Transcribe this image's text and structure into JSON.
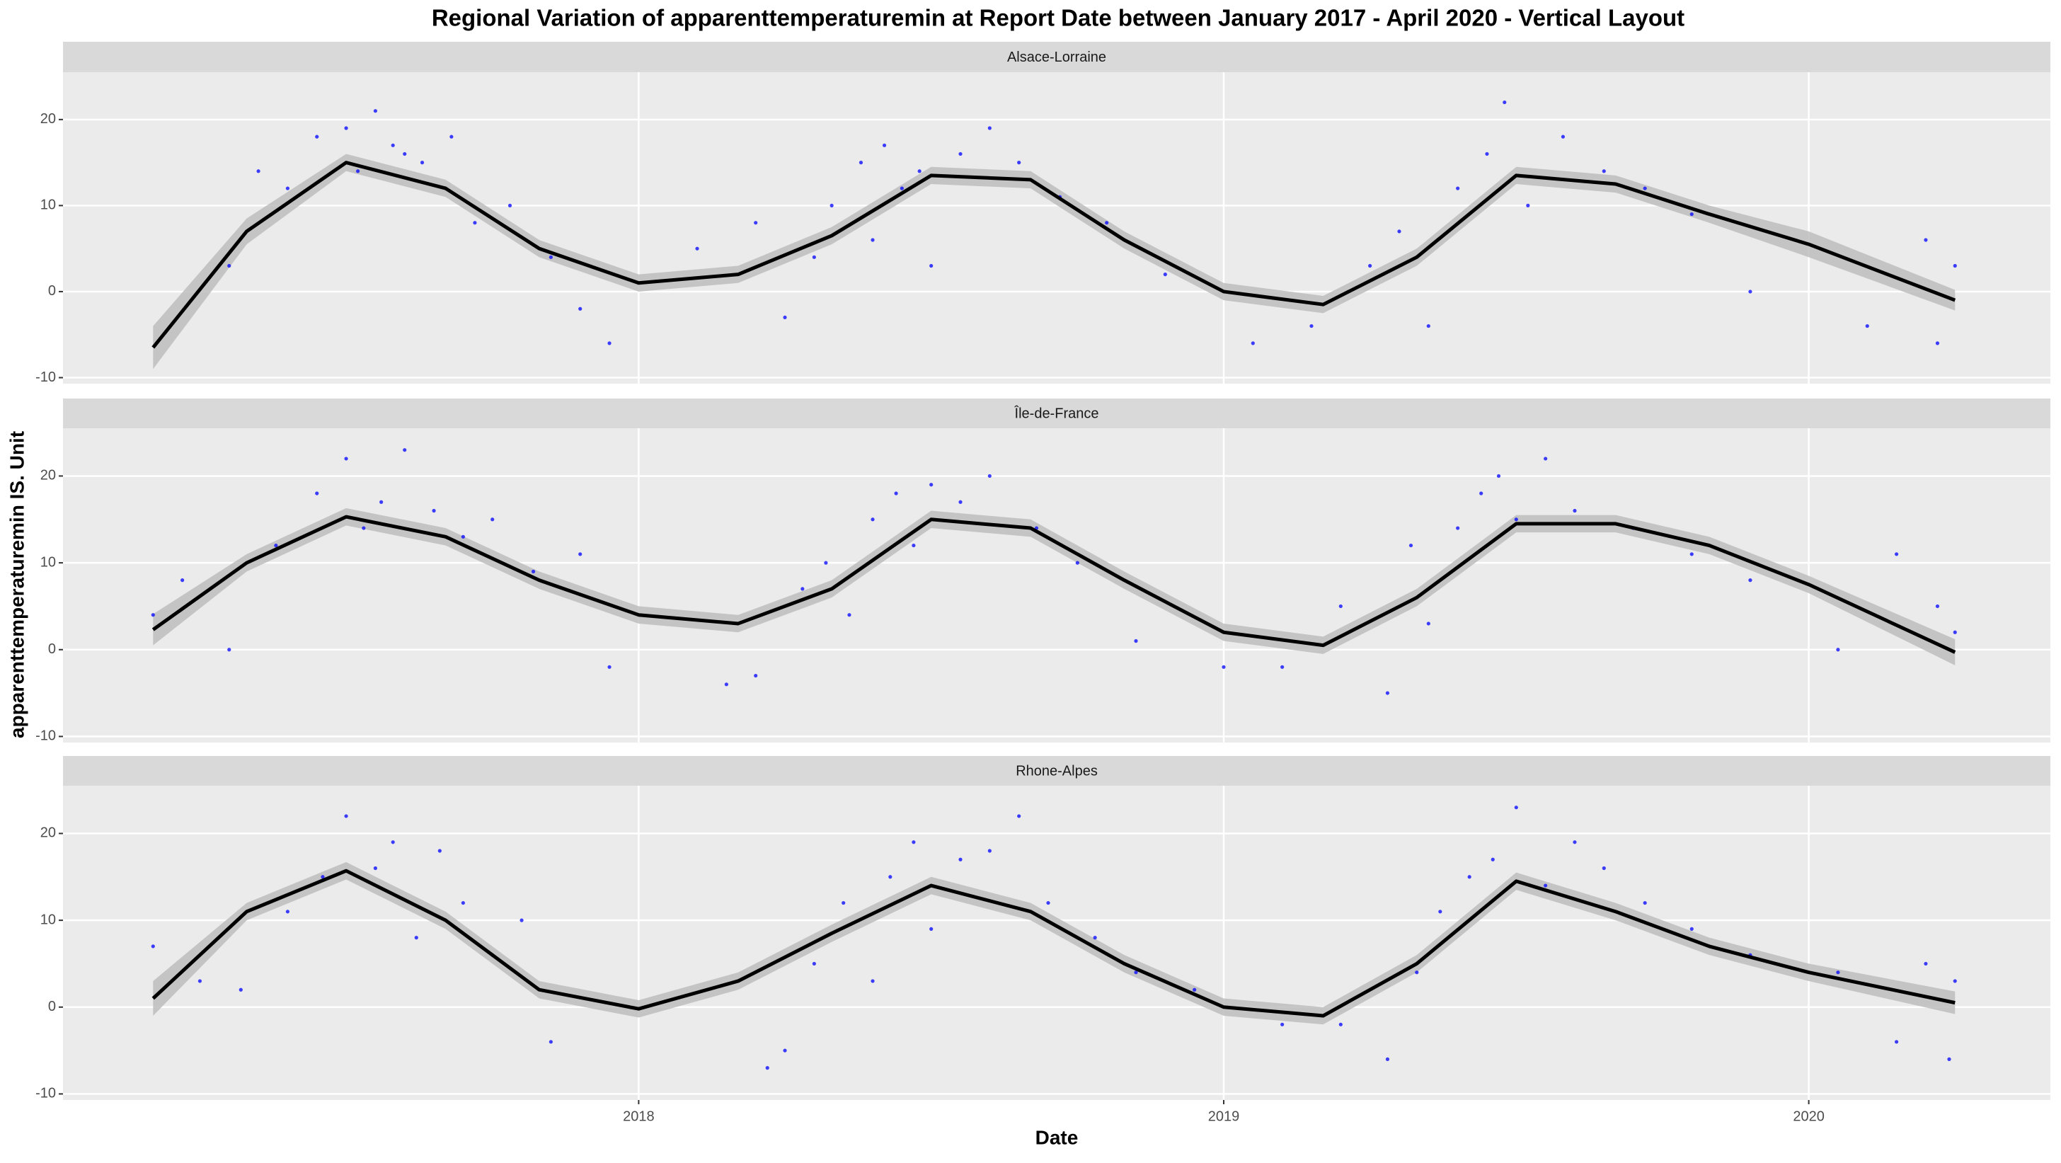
{
  "chart_data": {
    "type": "scatter",
    "title": "Regional Variation of  apparenttemperaturemin  at Report Date between January 2017 - April 2020 - Vertical Layout",
    "x_label": "Date",
    "y_label": "apparenttemperaturemin  IS. Unit",
    "xlim": [
      2017.016,
      2020.413
    ],
    "xticks": [
      2018,
      2019,
      2020
    ],
    "ylim": [
      -10.7,
      25.5
    ],
    "yticks": [
      -10,
      0,
      10,
      20
    ],
    "grid": true,
    "point_color": "#0000ff",
    "line_color": "#000000",
    "band_color": "#bdbdbd",
    "panels": [
      {
        "name": "Alsace-Lorraine",
        "points": {
          "x": [
            2017.3,
            2017.35,
            2017.4,
            2017.45,
            2017.5,
            2017.52,
            2017.55,
            2017.58,
            2017.6,
            2017.63,
            2017.68,
            2017.72,
            2017.78,
            2017.85,
            2017.9,
            2017.95,
            2018.1,
            2018.2,
            2018.25,
            2018.3,
            2018.33,
            2018.38,
            2018.4,
            2018.42,
            2018.45,
            2018.48,
            2018.5,
            2018.55,
            2018.6,
            2018.65,
            2018.72,
            2018.8,
            2018.9,
            2019.05,
            2019.15,
            2019.25,
            2019.3,
            2019.35,
            2019.4,
            2019.45,
            2019.48,
            2019.52,
            2019.58,
            2019.65,
            2019.72,
            2019.8,
            2019.9,
            2020.1,
            2020.2,
            2020.22,
            2020.25
          ],
          "values": [
            3,
            14,
            12,
            18,
            19,
            14,
            21,
            17,
            16,
            15,
            18,
            8,
            10,
            4,
            -2,
            -6,
            5,
            8,
            -3,
            4,
            10,
            15,
            6,
            17,
            12,
            14,
            3,
            16,
            19,
            15,
            11,
            8,
            2,
            -6,
            -4,
            3,
            7,
            -4,
            12,
            16,
            22,
            10,
            18,
            14,
            12,
            9,
            0,
            -4,
            6,
            -6,
            3
          ]
        },
        "smooth": {
          "x": [
            2017.17,
            2017.33,
            2017.5,
            2017.67,
            2017.83,
            2018.0,
            2018.17,
            2018.33,
            2018.5,
            2018.67,
            2018.83,
            2019.0,
            2019.17,
            2019.33,
            2019.5,
            2019.67,
            2019.83,
            2020.0,
            2020.25
          ],
          "values": [
            -6.5,
            7,
            15,
            12,
            5,
            1,
            2,
            6.5,
            13.5,
            13,
            6,
            0,
            -1.5,
            4,
            13.5,
            12.5,
            9,
            5.5,
            -1
          ],
          "lower": [
            -9,
            5.5,
            14,
            11,
            4,
            0,
            1,
            5.5,
            12.5,
            12,
            5,
            -1,
            -2.5,
            3,
            12.5,
            11.5,
            8,
            4,
            -2.2
          ],
          "upper": [
            -4,
            8.5,
            16,
            13,
            6,
            2,
            3,
            7.5,
            14.5,
            14,
            7,
            1,
            -0.5,
            5,
            14.5,
            13.5,
            10,
            7,
            0.2
          ]
        }
      },
      {
        "name": "Île-de-France",
        "points": {
          "x": [
            2017.17,
            2017.22,
            2017.3,
            2017.38,
            2017.45,
            2017.5,
            2017.53,
            2017.56,
            2017.6,
            2017.65,
            2017.7,
            2017.75,
            2017.82,
            2017.9,
            2017.95,
            2018.15,
            2018.2,
            2018.28,
            2018.32,
            2018.36,
            2018.4,
            2018.44,
            2018.47,
            2018.5,
            2018.55,
            2018.6,
            2018.68,
            2018.75,
            2018.85,
            2019.0,
            2019.1,
            2019.2,
            2019.28,
            2019.32,
            2019.35,
            2019.4,
            2019.44,
            2019.47,
            2019.5,
            2019.55,
            2019.6,
            2019.7,
            2019.8,
            2019.9,
            2020.05,
            2020.15,
            2020.22,
            2020.25
          ],
          "values": [
            4,
            8,
            0,
            12,
            18,
            22,
            14,
            17,
            23,
            16,
            13,
            15,
            9,
            11,
            -2,
            -4,
            -3,
            7,
            10,
            4,
            15,
            18,
            12,
            19,
            17,
            20,
            14,
            10,
            1,
            -2,
            -2,
            5,
            -5,
            12,
            3,
            14,
            18,
            20,
            15,
            22,
            16,
            14,
            11,
            8,
            0,
            11,
            5,
            2
          ]
        },
        "smooth": {
          "x": [
            2017.17,
            2017.33,
            2017.5,
            2017.67,
            2017.83,
            2018.0,
            2018.17,
            2018.33,
            2018.5,
            2018.67,
            2018.83,
            2019.0,
            2019.17,
            2019.33,
            2019.5,
            2019.67,
            2019.83,
            2020.0,
            2020.25
          ],
          "values": [
            2.3,
            10,
            15.3,
            13,
            8,
            4,
            3,
            7,
            15,
            14,
            8,
            2,
            0.5,
            6,
            14.5,
            14.5,
            12,
            7.5,
            -0.3
          ],
          "lower": [
            0.5,
            9,
            14.3,
            12,
            7,
            3,
            2,
            6,
            14,
            13,
            7,
            1,
            -0.5,
            5,
            13.5,
            13.5,
            11,
            6.5,
            -1.8
          ],
          "upper": [
            4.1,
            11,
            16.3,
            14,
            9,
            5,
            4,
            8,
            16,
            15,
            9,
            3,
            1.5,
            7,
            15.5,
            15.5,
            13,
            8.5,
            1.2
          ]
        }
      },
      {
        "name": "Rhone-Alpes",
        "points": {
          "x": [
            2017.17,
            2017.25,
            2017.32,
            2017.4,
            2017.46,
            2017.5,
            2017.55,
            2017.58,
            2017.62,
            2017.66,
            2017.7,
            2017.75,
            2017.8,
            2017.85,
            2018.22,
            2018.25,
            2018.3,
            2018.35,
            2018.4,
            2018.43,
            2018.47,
            2018.5,
            2018.55,
            2018.6,
            2018.65,
            2018.7,
            2018.78,
            2018.85,
            2018.95,
            2019.1,
            2019.2,
            2019.28,
            2019.33,
            2019.37,
            2019.42,
            2019.46,
            2019.5,
            2019.55,
            2019.6,
            2019.65,
            2019.72,
            2019.8,
            2019.9,
            2020.05,
            2020.15,
            2020.2,
            2020.24,
            2020.25
          ],
          "values": [
            7,
            3,
            2,
            11,
            15,
            22,
            16,
            19,
            8,
            18,
            12,
            6,
            10,
            -4,
            -7,
            -5,
            5,
            12,
            3,
            15,
            19,
            9,
            17,
            18,
            22,
            12,
            8,
            4,
            2,
            -2,
            -2,
            -6,
            4,
            11,
            15,
            17,
            23,
            14,
            19,
            16,
            12,
            9,
            6,
            4,
            -4,
            5,
            -6,
            3
          ]
        },
        "smooth": {
          "x": [
            2017.17,
            2017.33,
            2017.5,
            2017.67,
            2017.83,
            2018.0,
            2018.17,
            2018.33,
            2018.5,
            2018.67,
            2018.83,
            2019.0,
            2019.17,
            2019.33,
            2019.5,
            2019.67,
            2019.83,
            2020.0,
            2020.25
          ],
          "values": [
            1,
            11,
            15.7,
            10,
            2,
            -0.2,
            3,
            8.5,
            14,
            11,
            5,
            0,
            -1,
            5,
            14.5,
            11,
            7,
            4,
            0.5
          ],
          "lower": [
            -1,
            10,
            14.7,
            9,
            1,
            -1.2,
            2,
            7.5,
            13,
            10,
            4,
            -1,
            -2,
            4,
            13.5,
            10,
            6,
            3,
            -0.8
          ],
          "upper": [
            3,
            12,
            16.7,
            11,
            3,
            0.8,
            4,
            9.5,
            15,
            12,
            6,
            1,
            0,
            6,
            15.5,
            12,
            8,
            5,
            1.8
          ]
        }
      }
    ]
  }
}
